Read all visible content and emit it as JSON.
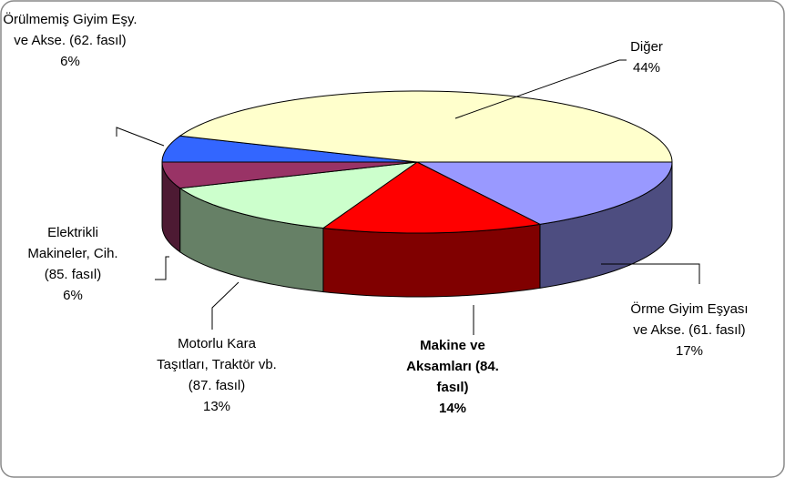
{
  "chart_data": {
    "type": "pie",
    "categories": [
      "Örme Giyim Eşyası ve Akse. (61. fasıl)",
      "Makine ve Aksamları (84. fasıl)",
      "Motorlu Kara Taşıtları, Traktör vb. (87. fasıl)",
      "Elektrikli Makineler, Cih. (85. fasıl)",
      "Örülmemiş Giyim Eşy. ve Akse. (62. fasıl)",
      "Diğer"
    ],
    "values": [
      17,
      14,
      13,
      6,
      6,
      44
    ],
    "value_labels": [
      "17%",
      "14%",
      "13%",
      "6%",
      "6%",
      "44%"
    ],
    "colors": [
      "#9999ff",
      "#ff0000",
      "#ccffcc",
      "#993366",
      "#3366ff",
      "#ffffcc"
    ]
  }
}
